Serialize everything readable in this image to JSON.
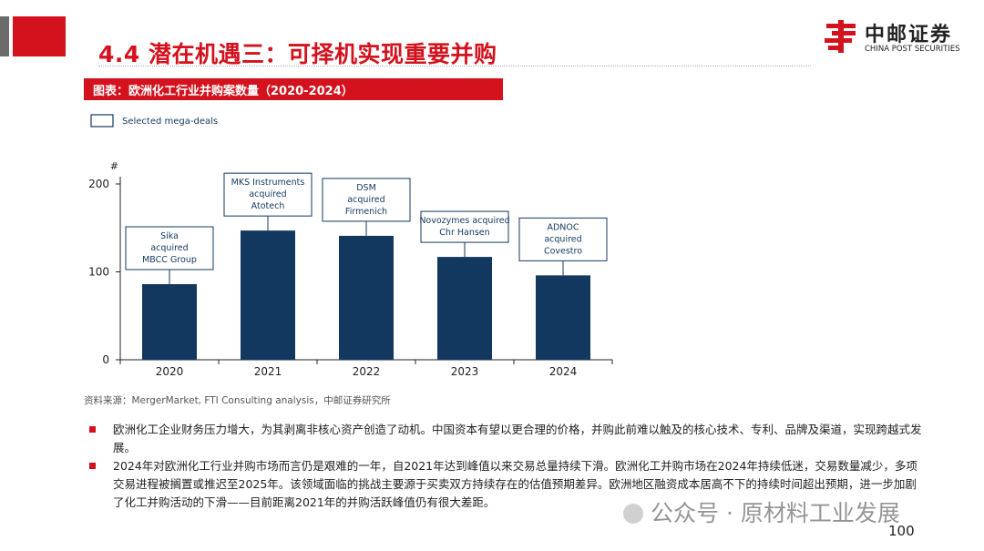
{
  "header": {
    "title": "4.4 潜在机遇三：可择机实现重要并购",
    "logo_cn": "中邮证券",
    "logo_en": "CHINA POST SECURITIES"
  },
  "figure_caption": "图表：欧洲化工行业并购案数量（2020-2024）",
  "chart_data": {
    "type": "bar",
    "title": "",
    "xlabel": "",
    "ylabel": "#",
    "ylim": [
      0,
      200
    ],
    "yticks": [
      0,
      100,
      200
    ],
    "legend": {
      "label": "Selected mega-deals",
      "position": "top-left"
    },
    "categories": [
      "2020",
      "2021",
      "2022",
      "2023",
      "2024"
    ],
    "values": [
      86,
      147,
      141,
      117,
      96
    ],
    "annotations": [
      {
        "category": "2020",
        "lines": [
          "Sika",
          "acquired",
          "MBCC Group"
        ]
      },
      {
        "category": "2021",
        "lines": [
          "MKS Instruments",
          "acquired",
          "Atotech"
        ]
      },
      {
        "category": "2022",
        "lines": [
          "DSM",
          "acquired",
          "Firmenich"
        ]
      },
      {
        "category": "2023",
        "lines": [
          "Novozymes acquired",
          "Chr Hansen"
        ]
      },
      {
        "category": "2024",
        "lines": [
          "ADNOC",
          "acquired",
          "Covestro"
        ]
      }
    ],
    "bar_color": "#13385f"
  },
  "source": "资料来源：MergerMarket, FTI Consulting analysis，中邮证券研究所",
  "bullets": [
    "欧洲化工企业财务压力增大，为其剥离非核心资产创造了动机。中国资本有望以更合理的价格，并购此前难以触及的核心技术、专利、品牌及渠道，实现跨越式发展。",
    "2024年对欧洲化工行业并购市场而言仍是艰难的一年，自2021年达到峰值以来交易总量持续下滑。欧洲化工并购市场在2024年持续低迷，交易数量减少，多项交易进程被搁置或推迟至2025年。该领域面临的挑战主要源于买卖双方持续存在的估值预期差异。欧洲地区融资成本居高不下的持续时间超出预期，进一步加剧了化工并购活动的下滑——目前距离2021年的并购活跃峰值仍有很大差距。"
  ],
  "watermark": "公众号 · 原材料工业发展",
  "page_number": "100",
  "colors": {
    "accent": "#d3121d",
    "bar": "#13385f"
  }
}
